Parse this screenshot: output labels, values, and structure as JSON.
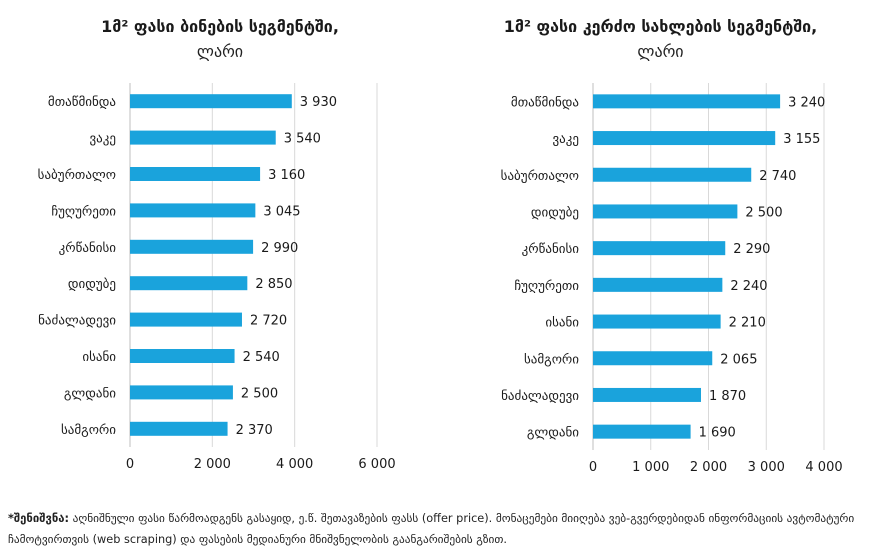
{
  "colors": {
    "bar": "#1aa3dc",
    "axis": "#bfbfbf",
    "grid": "#d9d9d9",
    "text": "#1a1a1a"
  },
  "chart_data": [
    {
      "type": "bar",
      "orientation": "horizontal",
      "title": "1მ² ფასი ბინების სეგმენტში,",
      "subtitle": "ლარი",
      "categories": [
        "მთაწმინდა",
        "ვაკე",
        "საბურთალო",
        "ჩუღურეთი",
        "კრწანისი",
        "დიდუბე",
        "ნაძალადევი",
        "ისანი",
        "გლდანი",
        "სამგორი"
      ],
      "values": [
        3930,
        3540,
        3160,
        3045,
        2990,
        2850,
        2720,
        2540,
        2500,
        2370
      ],
      "value_labels": [
        "3 930",
        "3 540",
        "3 160",
        "3 045",
        "2 990",
        "2 850",
        "2 720",
        "2 540",
        "2 500",
        "2 370"
      ],
      "xlim": [
        0,
        6000
      ],
      "ticks": [
        0,
        2000,
        4000,
        6000
      ],
      "tick_labels": [
        "0",
        "2 000",
        "4 000",
        "6 000"
      ],
      "grid": true
    },
    {
      "type": "bar",
      "orientation": "horizontal",
      "title": "1მ² ფასი კერძო სახლების სეგმენტში,",
      "subtitle": "ლარი",
      "categories": [
        "მთაწმინდა",
        "ვაკე",
        "საბურთალო",
        "დიდუბე",
        "კრწანისი",
        "ჩუღურეთი",
        "ისანი",
        "სამგორი",
        "ნაძალადევი",
        "გლდანი"
      ],
      "values": [
        3240,
        3155,
        2740,
        2500,
        2290,
        2240,
        2210,
        2065,
        1870,
        1690
      ],
      "value_labels": [
        "3 240",
        "3 155",
        "2 740",
        "2 500",
        "2 290",
        "2 240",
        "2 210",
        "2 065",
        "1 870",
        "1 690"
      ],
      "xlim": [
        0,
        4000
      ],
      "ticks": [
        0,
        1000,
        2000,
        3000,
        4000
      ],
      "tick_labels": [
        "0",
        "1 000",
        "2 000",
        "3 000",
        "4 000"
      ],
      "grid": true
    }
  ],
  "note": {
    "label": "*შენიშვნა:",
    "text": " აღნიშნული ფასი წარმოადგენს გასაყიდ, ე.წ. შეთავაზების ფასს (offer price). მონაცემები მიიღება ვებ-გვერდებიდან ინფორმაციის ავტომატური ჩამოტვირთვის (web scraping) და ფასების მედიანური მნიშვნელობის გაანგარიშების გზით."
  }
}
